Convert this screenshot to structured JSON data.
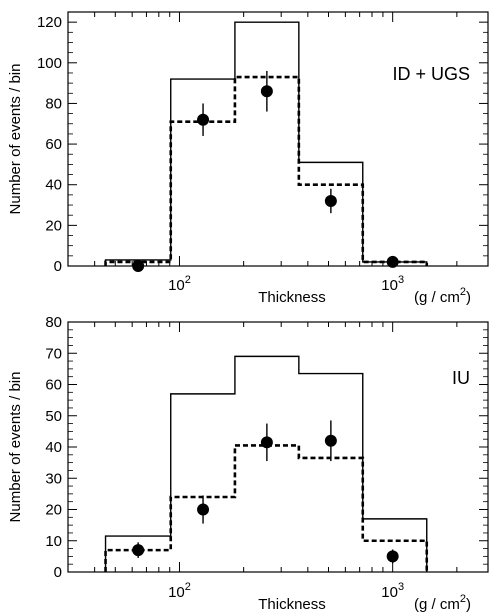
{
  "chart_data": [
    {
      "type": "histogram",
      "panel": "top",
      "annotation": "ID + UGS",
      "xlabel": "Thickness",
      "xunit": "(g / cm2)",
      "ylabel": "Number of events / bin",
      "xscale": "log",
      "xlim": [
        30,
        2800
      ],
      "ylim": [
        0,
        125
      ],
      "yticks": [
        0,
        20,
        40,
        60,
        80,
        100,
        120
      ],
      "xtick_labels": [
        "10^2",
        "10^3"
      ],
      "bin_edges": [
        45,
        91,
        182,
        363,
        724,
        1445
      ],
      "series": [
        {
          "style": "solid-step",
          "values": [
            3,
            92,
            120,
            51,
            2
          ]
        },
        {
          "style": "dashed-step",
          "values": [
            2,
            71,
            93,
            40,
            2
          ]
        },
        {
          "style": "points-with-errorbars",
          "x": [
            64,
            129,
            257,
            513,
            1000
          ],
          "y": [
            0,
            72,
            86,
            32,
            2
          ],
          "err": [
            0.5,
            8,
            10,
            6,
            1.5
          ]
        }
      ]
    },
    {
      "type": "histogram",
      "panel": "bottom",
      "annotation": "IU",
      "xlabel": "Thickness",
      "xunit": "(g / cm2)",
      "ylabel": "Number of events / bin",
      "xscale": "log",
      "xlim": [
        30,
        2800
      ],
      "ylim": [
        0,
        80
      ],
      "yticks": [
        0,
        10,
        20,
        30,
        40,
        50,
        60,
        70,
        80
      ],
      "xtick_labels": [
        "10^2",
        "10^3"
      ],
      "bin_edges": [
        45,
        91,
        182,
        363,
        724,
        1445
      ],
      "series": [
        {
          "style": "solid-step",
          "values": [
            11.5,
            57,
            69,
            63.5,
            17
          ]
        },
        {
          "style": "dashed-step",
          "values": [
            7,
            24,
            40.5,
            36.5,
            10
          ]
        },
        {
          "style": "points-with-errorbars",
          "x": [
            64,
            129,
            257,
            513,
            1000
          ],
          "y": [
            7,
            20,
            41.5,
            42,
            5
          ],
          "err": [
            2.5,
            4.5,
            6,
            6.5,
            2.2
          ]
        }
      ]
    }
  ]
}
